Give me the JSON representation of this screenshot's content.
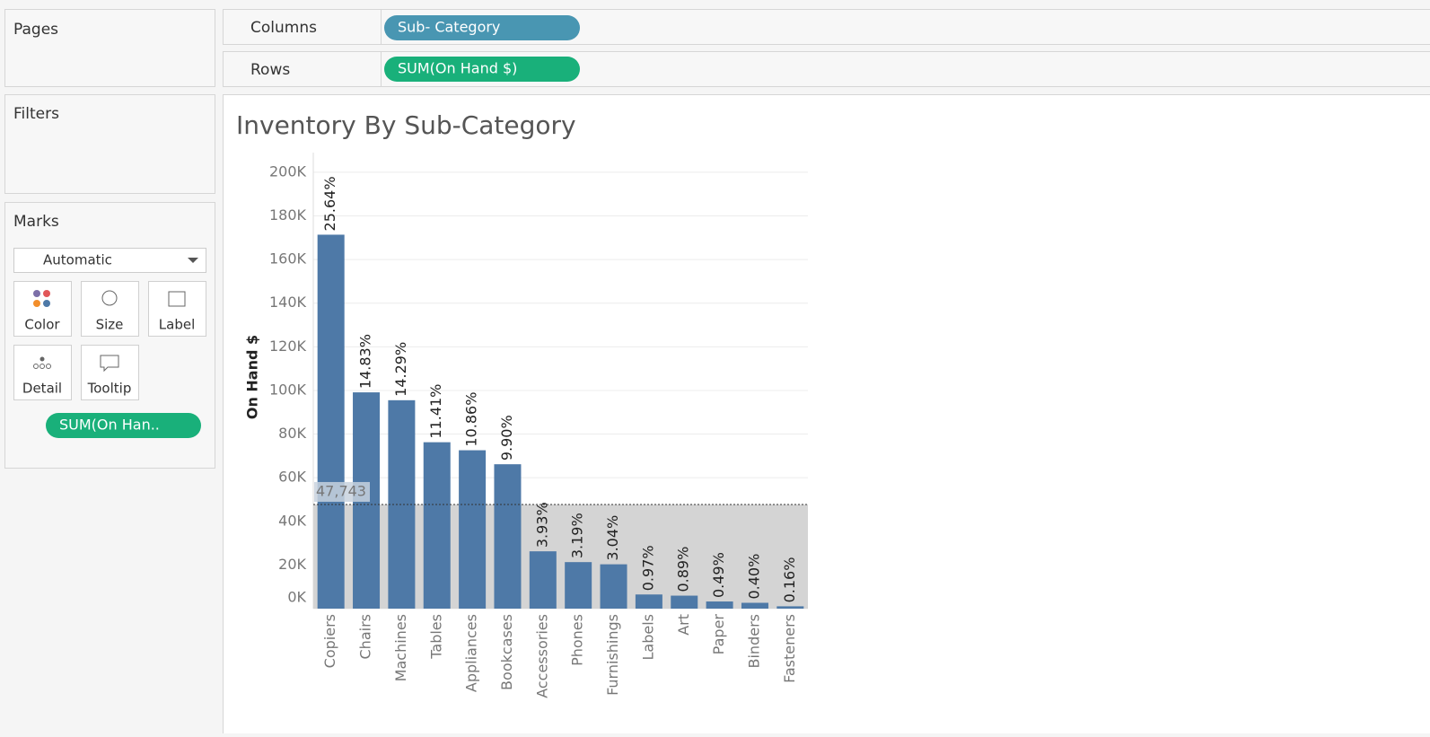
{
  "ui": {
    "pages": "Pages",
    "filters": "Filters",
    "marks": "Marks",
    "mark_type": "Automatic",
    "cards": [
      "Color",
      "Size",
      "Label",
      "Detail",
      "Tooltip"
    ],
    "marks_pill": "SUM(On Han..",
    "columns": "Columns",
    "columns_pill": "Sub- Category",
    "rows": "Rows",
    "rows_pill": "SUM(On Hand $)"
  },
  "chart_data": {
    "type": "bar",
    "title": "Inventory By Sub-Category",
    "y_label": "On Hand $",
    "categories": [
      "Copiers",
      "Chairs",
      "Machines",
      "Tables",
      "Appliances",
      "Bookcases",
      "Accessories",
      "Phones",
      "Furnishings",
      "Labels",
      "Art",
      "Paper",
      "Binders",
      "Fasteners"
    ],
    "values": [
      171378,
      99124,
      95515,
      76265,
      72588,
      66172,
      26268,
      21322,
      20319,
      6484,
      5949,
      3275,
      2674,
      1069
    ],
    "data_labels": [
      "25.64%",
      "14.83%",
      "14.29%",
      "11.41%",
      "10.86%",
      "9.90%",
      "3.93%",
      "3.19%",
      "3.04%",
      "0.97%",
      "0.89%",
      "0.49%",
      "0.40%",
      "0.16%"
    ],
    "color": "#4e79a7",
    "reference_line": {
      "value": 47743,
      "label": "47,743"
    },
    "ylim": [
      0,
      209000
    ],
    "yticks": [
      {
        "value": 0,
        "label": "0K"
      },
      {
        "value": 20000,
        "label": "20K"
      },
      {
        "value": 40000,
        "label": "40K"
      },
      {
        "value": 60000,
        "label": "60K"
      },
      {
        "value": 80000,
        "label": "80K"
      },
      {
        "value": 100000,
        "label": "100K"
      },
      {
        "value": 120000,
        "label": "120K"
      },
      {
        "value": 140000,
        "label": "140K"
      },
      {
        "value": 160000,
        "label": "160K"
      },
      {
        "value": 180000,
        "label": "180K"
      },
      {
        "value": 200000,
        "label": "200K"
      }
    ],
    "grid": true
  }
}
